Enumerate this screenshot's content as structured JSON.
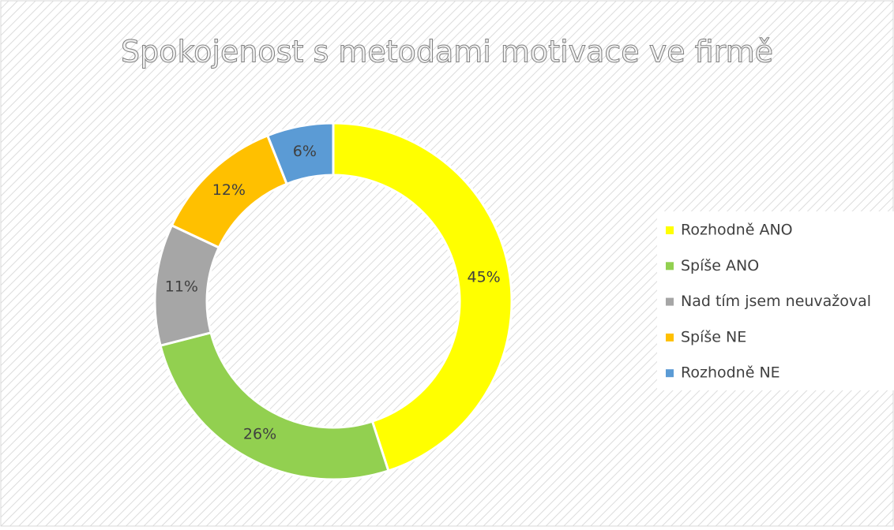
{
  "chart_data": {
    "type": "donut",
    "title": "Spokojenost s metodami motivace ve firmě",
    "categories": [
      "Rozhodně ANO",
      "Spíše ANO",
      "Nad tím jsem neuvažoval",
      "Spíše NE",
      "Rozhodně NE"
    ],
    "values": [
      45,
      26,
      11,
      12,
      6
    ],
    "value_labels": [
      "45%",
      "26%",
      "11%",
      "12%",
      "6%"
    ],
    "colors": [
      "#ffff00",
      "#92d050",
      "#a6a6a6",
      "#ffc000",
      "#5b9bd5"
    ],
    "legend": "right"
  }
}
